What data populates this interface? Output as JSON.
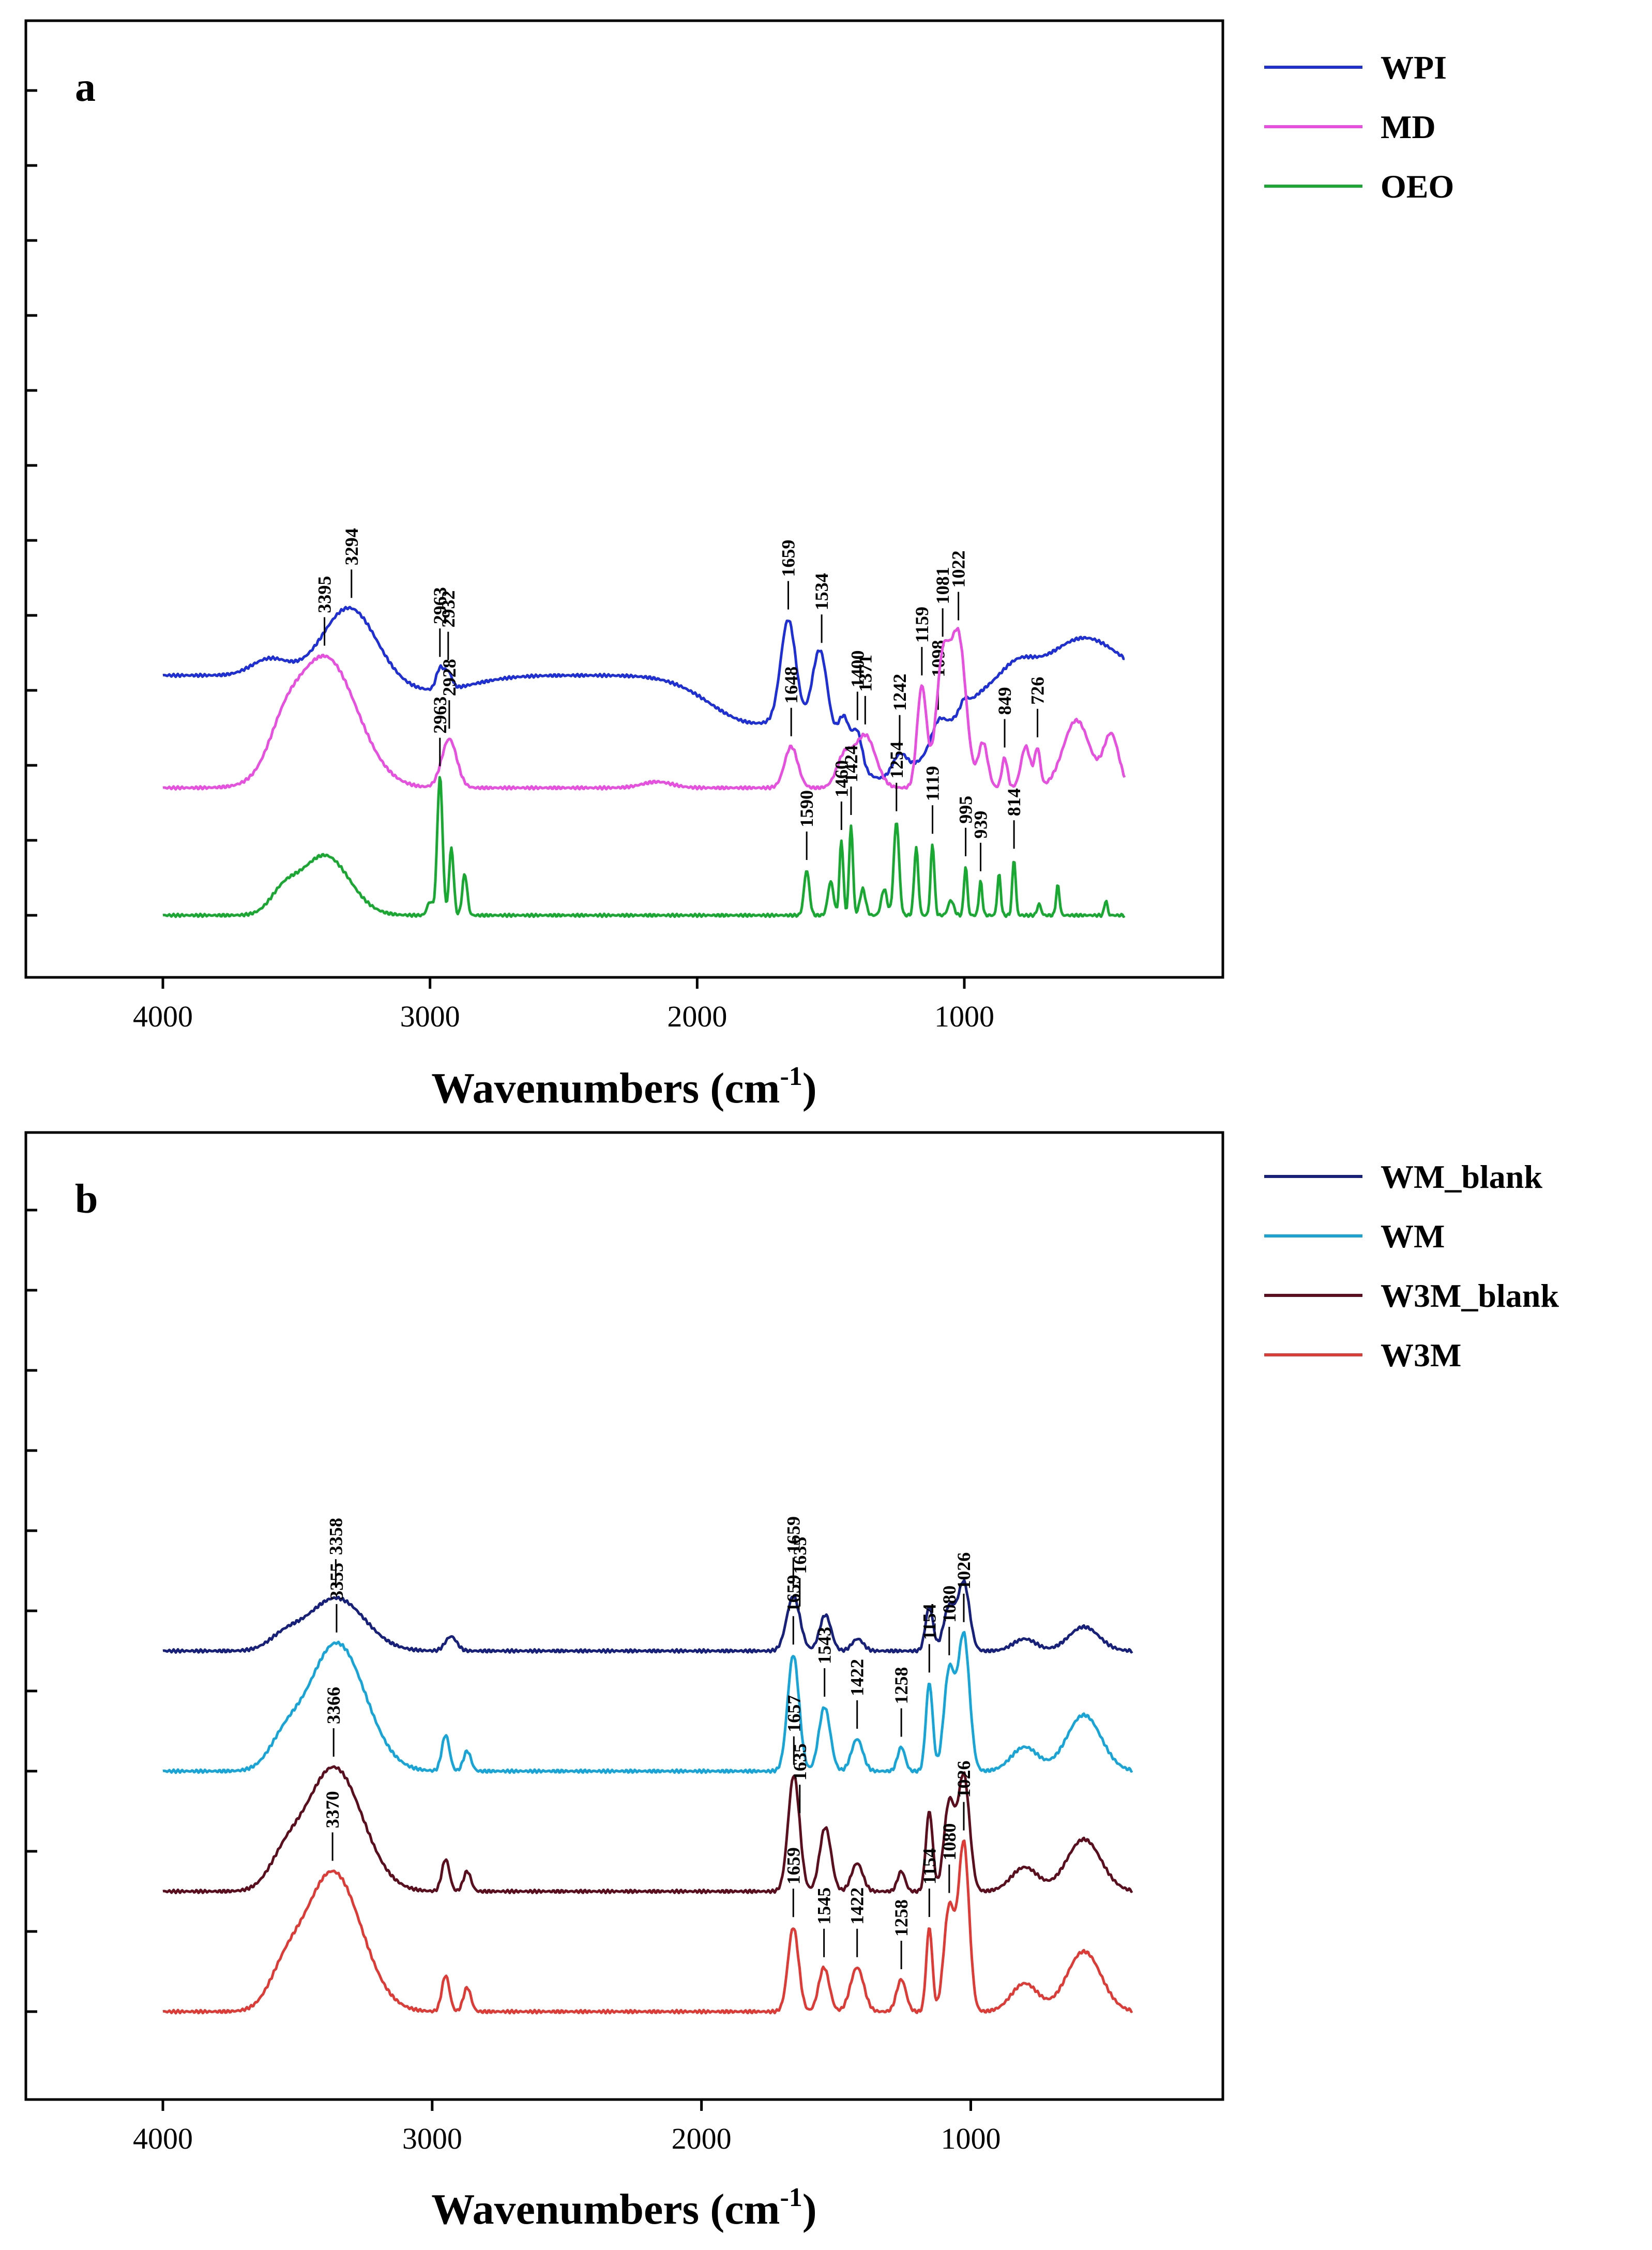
{
  "chart_data": [
    {
      "type": "line",
      "panel_label": "a",
      "xlabel": "Wavenumbers (cm",
      "xlabel_sup": "-1",
      "xlabel_close": ")",
      "xlim": [
        4000,
        400
      ],
      "x_reversed": true,
      "x_ticks": [
        4000,
        3000,
        2000,
        1000
      ],
      "y_tick_labels": false,
      "legend_position": "right",
      "series": [
        {
          "name": "WPI",
          "color": "#1f2fd6",
          "baseline": 3.2,
          "shape": {
            "n": [
              [
                1200,
                0.9
              ],
              [
                1400,
                0.8
              ],
              [
                1800,
                0.6
              ],
              [
                3000,
                0.2
              ]
            ],
            "p": [
              [
                3300,
                0.93,
                140
              ],
              [
                3600,
                0.22,
                95
              ],
              [
                2963,
                0.28,
                20
              ],
              [
                2932,
                0.22,
                20
              ],
              [
                1659,
                1.35,
                40
              ],
              [
                1540,
                1.1,
                40
              ],
              [
                1450,
                0.5,
                30
              ],
              [
                1400,
                0.45,
                25
              ],
              [
                1242,
                0.3,
                40
              ],
              [
                1098,
                0.25,
                35
              ],
              [
                1000,
                0.12,
                20
              ],
              [
                550,
                0.5,
                170
              ],
              [
                800,
                0.2,
                80
              ]
            ]
          },
          "peaks": [
            3294,
            2963,
            2932,
            1659,
            1534,
            1400,
            1242,
            1098
          ]
        },
        {
          "name": "MD",
          "color": "#e84fe0",
          "baseline": 1.7,
          "shape": {
            "p": [
              [
                3395,
                1.75,
                170
              ],
              [
                3550,
                0.35,
                80
              ],
              [
                2928,
                0.65,
                40
              ],
              [
                2150,
                0.08,
                80
              ],
              [
                1648,
                0.55,
                35
              ],
              [
                1371,
                0.7,
                55
              ],
              [
                1450,
                0.4,
                40
              ],
              [
                1159,
                1.35,
                25
              ],
              [
                1081,
                1.65,
                35
              ],
              [
                1022,
                2.0,
                40
              ],
              [
                930,
                0.6,
                25
              ],
              [
                849,
                0.4,
                15
              ],
              [
                770,
                0.55,
                25
              ],
              [
                726,
                0.5,
                15
              ],
              [
                580,
                0.9,
                70
              ],
              [
                450,
                0.7,
                40
              ]
            ]
          },
          "peaks": [
            3395,
            2928,
            1648,
            1371,
            1159,
            1081,
            1022,
            849,
            726
          ]
        },
        {
          "name": "OEO",
          "color": "#19a832",
          "baseline": 0.0,
          "shape": {
            "p": [
              [
                3395,
                0.8,
                130
              ],
              [
                3550,
                0.25,
                70
              ],
              [
                3000,
                0.18,
                15
              ],
              [
                2963,
                1.85,
                14
              ],
              [
                2920,
                0.9,
                12
              ],
              [
                2870,
                0.55,
                13
              ],
              [
                1590,
                0.6,
                14
              ],
              [
                1500,
                0.45,
                15
              ],
              [
                1460,
                1.0,
                10
              ],
              [
                1424,
                1.2,
                10
              ],
              [
                1380,
                0.35,
                15
              ],
              [
                1300,
                0.35,
                15
              ],
              [
                1254,
                1.25,
                14
              ],
              [
                1180,
                0.9,
                11
              ],
              [
                1119,
                0.95,
                10
              ],
              [
                1050,
                0.2,
                15
              ],
              [
                995,
                0.65,
                9
              ],
              [
                939,
                0.45,
                9
              ],
              [
                870,
                0.55,
                9
              ],
              [
                814,
                0.75,
                9
              ],
              [
                720,
                0.15,
                10
              ],
              [
                650,
                0.4,
                9
              ],
              [
                470,
                0.2,
                8
              ]
            ]
          },
          "peaks": [
            2963,
            1590,
            1460,
            1424,
            1254,
            1119,
            995,
            939,
            814
          ]
        }
      ]
    },
    {
      "type": "line",
      "panel_label": "b",
      "xlabel": "Wavenumbers (cm",
      "xlabel_sup": "-1",
      "xlabel_close": ")",
      "xlim": [
        4000,
        400
      ],
      "x_reversed": true,
      "x_ticks": [
        4000,
        3000,
        2000,
        1000
      ],
      "y_tick_labels": false,
      "legend_position": "right",
      "series": [
        {
          "name": "WM_blank",
          "color": "#17207a",
          "baseline": 4.5,
          "shape": {
            "p": [
              [
                3358,
                0.66,
                150
              ],
              [
                3550,
                0.15,
                80
              ],
              [
                2930,
                0.18,
                30
              ],
              [
                1659,
                0.68,
                35
              ],
              [
                1540,
                0.45,
                30
              ],
              [
                1420,
                0.15,
                30
              ],
              [
                1154,
                0.55,
                20
              ],
              [
                1080,
                0.55,
                30
              ],
              [
                1026,
                0.85,
                30
              ],
              [
                580,
                0.3,
                80
              ],
              [
                800,
                0.15,
                60
              ]
            ]
          },
          "peaks": [
            3358,
            1659,
            1635
          ]
        },
        {
          "name": "WM",
          "color": "#17a5d8",
          "baseline": 3.0,
          "shape": {
            "p": [
              [
                3355,
                1.6,
                150
              ],
              [
                3550,
                0.3,
                80
              ],
              [
                2950,
                0.45,
                20
              ],
              [
                2870,
                0.25,
                20
              ],
              [
                1659,
                1.45,
                30
              ],
              [
                1543,
                0.8,
                30
              ],
              [
                1422,
                0.4,
                30
              ],
              [
                1258,
                0.3,
                20
              ],
              [
                1154,
                1.1,
                18
              ],
              [
                1080,
                1.25,
                28
              ],
              [
                1026,
                1.7,
                30
              ],
              [
                580,
                0.7,
                90
              ],
              [
                800,
                0.3,
                70
              ]
            ]
          },
          "peaks": [
            3355,
            1659,
            1543,
            1422,
            1258,
            1154,
            1080,
            1026
          ]
        },
        {
          "name": "W3M_blank",
          "color": "#5a0e1e",
          "baseline": 1.5,
          "shape": {
            "p": [
              [
                3366,
                1.55,
                150
              ],
              [
                3550,
                0.3,
                80
              ],
              [
                2950,
                0.4,
                20
              ],
              [
                2870,
                0.25,
                20
              ],
              [
                1657,
                1.45,
                30
              ],
              [
                1540,
                0.8,
                30
              ],
              [
                1422,
                0.35,
                30
              ],
              [
                1258,
                0.25,
                20
              ],
              [
                1154,
                1.0,
                18
              ],
              [
                1080,
                1.1,
                28
              ],
              [
                1026,
                1.45,
                30
              ],
              [
                580,
                0.65,
                90
              ],
              [
                800,
                0.3,
                70
              ]
            ]
          },
          "peaks": [
            3366,
            1657,
            1635
          ]
        },
        {
          "name": "W3M",
          "color": "#de3b37",
          "baseline": 0.0,
          "shape": {
            "p": [
              [
                3370,
                1.75,
                150
              ],
              [
                3550,
                0.35,
                80
              ],
              [
                2950,
                0.45,
                20
              ],
              [
                2870,
                0.3,
                20
              ],
              [
                1659,
                1.05,
                28
              ],
              [
                1545,
                0.55,
                28
              ],
              [
                1422,
                0.55,
                35
              ],
              [
                1258,
                0.4,
                25
              ],
              [
                1154,
                1.05,
                16
              ],
              [
                1080,
                1.3,
                28
              ],
              [
                1026,
                2.1,
                28
              ],
              [
                580,
                0.75,
                90
              ],
              [
                800,
                0.35,
                70
              ]
            ]
          },
          "peaks": [
            3370,
            1659,
            1545,
            1422,
            1258,
            1154,
            1080,
            1026
          ]
        }
      ]
    }
  ]
}
